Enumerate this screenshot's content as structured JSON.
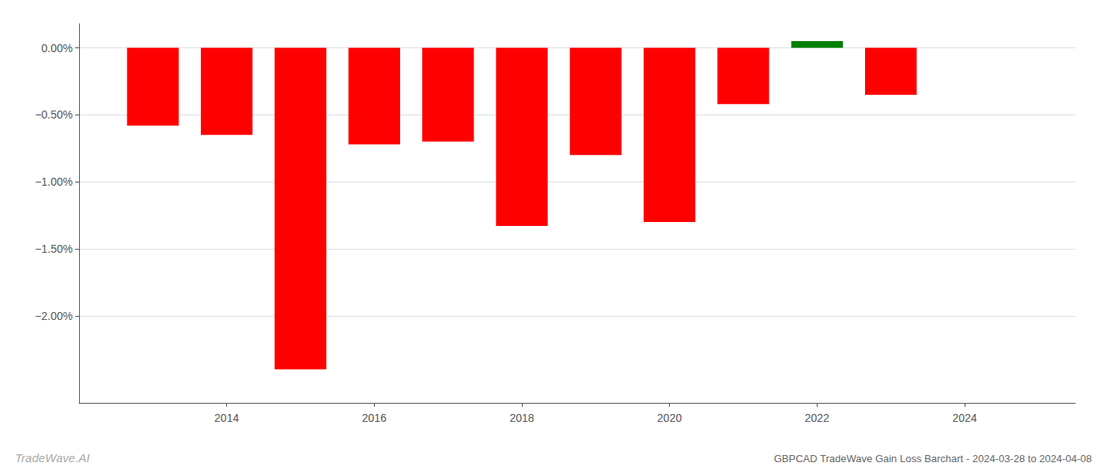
{
  "chart_data": {
    "type": "bar",
    "title": "GBPCAD TradeWave Gain Loss Barchart - 2024-03-28 to 2024-04-08",
    "annotations": [
      "TradeWave.AI"
    ],
    "x": [
      2013,
      2014,
      2015,
      2016,
      2017,
      2018,
      2019,
      2020,
      2021,
      2022,
      2023
    ],
    "values": [
      -0.58,
      -0.65,
      -2.4,
      -0.72,
      -0.7,
      -1.33,
      -0.8,
      -1.3,
      -0.42,
      0.05,
      -0.35
    ],
    "colors": [
      "#ff0000",
      "#ff0000",
      "#ff0000",
      "#ff0000",
      "#ff0000",
      "#ff0000",
      "#ff0000",
      "#ff0000",
      "#ff0000",
      "#008000",
      "#ff0000"
    ],
    "xlim": [
      2012.0,
      2025.5
    ],
    "ylim": [
      -2.65,
      0.18
    ],
    "xticks": [
      2014,
      2016,
      2018,
      2020,
      2022,
      2024
    ],
    "yticks": [
      {
        "value": 0.0,
        "label": "0.00%"
      },
      {
        "value": -0.5,
        "label": "−0.50%"
      },
      {
        "value": -1.0,
        "label": "−1.00%"
      },
      {
        "value": -1.5,
        "label": "−1.50%"
      },
      {
        "value": -2.0,
        "label": "−2.00%"
      }
    ],
    "grid": true
  }
}
